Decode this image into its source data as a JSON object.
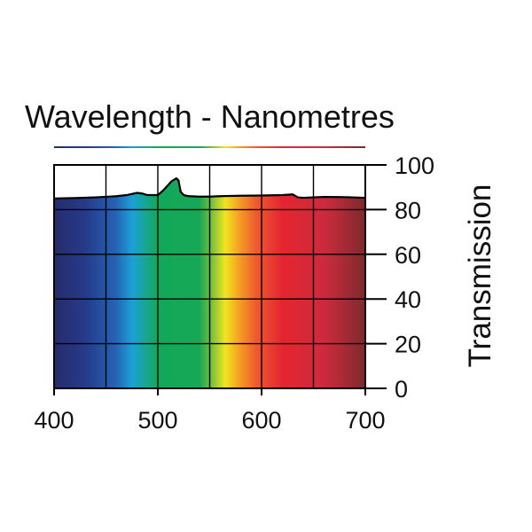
{
  "chart_data": {
    "type": "area",
    "title": "Wavelength - Nanometres",
    "xlabel": "",
    "ylabel": "Transmission",
    "xlim": [
      400,
      700
    ],
    "ylim": [
      0,
      100
    ],
    "x_ticks": [
      400,
      500,
      600,
      700
    ],
    "x_tick_labels": [
      "400",
      "500",
      "600",
      "700"
    ],
    "y_ticks": [
      0,
      20,
      40,
      60,
      80,
      100
    ],
    "y_tick_labels": [
      "0",
      "20",
      "40",
      "60",
      "80",
      "100"
    ],
    "x_grid_step": 50,
    "grid": true,
    "series": [
      {
        "name": "Transmission",
        "x": [
          400,
          420,
          440,
          460,
          470,
          480,
          485,
          490,
          500,
          505,
          510,
          513,
          516,
          518,
          520,
          522,
          525,
          530,
          540,
          550,
          560,
          580,
          600,
          620,
          630,
          635,
          640,
          660,
          680,
          700
        ],
        "values": [
          85,
          85.2,
          85.5,
          86,
          86.5,
          87.5,
          87.2,
          86.5,
          86.5,
          88.5,
          91,
          92.6,
          93.5,
          94,
          93,
          88,
          86.5,
          86,
          85.8,
          85.8,
          86,
          86.2,
          86.3,
          86.5,
          86.8,
          85.5,
          85.3,
          85.7,
          85.6,
          85.3
        ]
      }
    ],
    "spectrum_colors": [
      {
        "nm": 400,
        "color": "#262c6b"
      },
      {
        "nm": 430,
        "color": "#263a8a"
      },
      {
        "nm": 460,
        "color": "#2664b4"
      },
      {
        "nm": 475,
        "color": "#1aa0d8"
      },
      {
        "nm": 490,
        "color": "#18a68a"
      },
      {
        "nm": 500,
        "color": "#12a85a"
      },
      {
        "nm": 540,
        "color": "#16a855"
      },
      {
        "nm": 552,
        "color": "#7bbf3c"
      },
      {
        "nm": 565,
        "color": "#f1e51f"
      },
      {
        "nm": 578,
        "color": "#f6a023"
      },
      {
        "nm": 595,
        "color": "#ee5a30"
      },
      {
        "nm": 620,
        "color": "#e42532"
      },
      {
        "nm": 660,
        "color": "#cc2b3d"
      },
      {
        "nm": 700,
        "color": "#7e2a2e"
      }
    ]
  }
}
